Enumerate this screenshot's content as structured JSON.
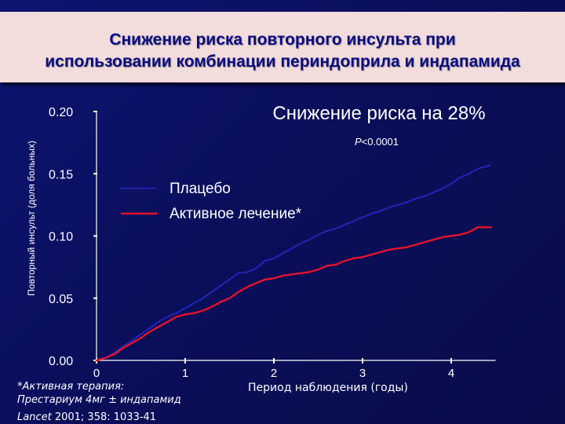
{
  "title_lines": [
    "Снижение риска повторного инсульта при",
    "использовании комбинации периндоприла и индапамида"
  ],
  "chart_data": {
    "type": "line",
    "ylabel": "Повторный инсульт (доля больных)",
    "xlabel": "Период наблюдения (годы)",
    "xlim": [
      0,
      4.5
    ],
    "ylim": [
      0,
      0.2
    ],
    "x_ticks": [
      "0",
      "1",
      "2",
      "3",
      "4"
    ],
    "y_ticks": [
      "0.00",
      "0.05",
      "0.10",
      "0.15",
      "0.20"
    ],
    "grid": false,
    "legend_position": "upper-left",
    "annotation_main": "Снижение риска на 28%",
    "annotation_p_italic": "P",
    "annotation_p_rest": "<0.0001",
    "footnote_lines": [
      "*Активная терапия:",
      "Престариум 4мг ± индапамид"
    ],
    "citation_journal": "Lancet",
    "citation_rest": " 2001; 358: 1033-41",
    "series": [
      {
        "name": "Плацебо",
        "color": "#2a2ad0",
        "style": "dotted",
        "points": [
          [
            0,
            0.0
          ],
          [
            0.1,
            0.002
          ],
          [
            0.2,
            0.006
          ],
          [
            0.3,
            0.011
          ],
          [
            0.4,
            0.016
          ],
          [
            0.5,
            0.021
          ],
          [
            0.6,
            0.026
          ],
          [
            0.7,
            0.031
          ],
          [
            0.8,
            0.035
          ],
          [
            0.9,
            0.038
          ],
          [
            1.0,
            0.042
          ],
          [
            1.1,
            0.046
          ],
          [
            1.2,
            0.05
          ],
          [
            1.3,
            0.055
          ],
          [
            1.4,
            0.06
          ],
          [
            1.5,
            0.065
          ],
          [
            1.6,
            0.07
          ],
          [
            1.7,
            0.071
          ],
          [
            1.8,
            0.074
          ],
          [
            1.9,
            0.08
          ],
          [
            2.0,
            0.082
          ],
          [
            2.1,
            0.086
          ],
          [
            2.2,
            0.09
          ],
          [
            2.3,
            0.094
          ],
          [
            2.4,
            0.097
          ],
          [
            2.5,
            0.101
          ],
          [
            2.6,
            0.104
          ],
          [
            2.7,
            0.106
          ],
          [
            2.8,
            0.109
          ],
          [
            2.9,
            0.112
          ],
          [
            3.0,
            0.115
          ],
          [
            3.1,
            0.118
          ],
          [
            3.2,
            0.12
          ],
          [
            3.3,
            0.123
          ],
          [
            3.4,
            0.125
          ],
          [
            3.5,
            0.127
          ],
          [
            3.6,
            0.13
          ],
          [
            3.7,
            0.132
          ],
          [
            3.8,
            0.135
          ],
          [
            3.9,
            0.138
          ],
          [
            4.0,
            0.142
          ],
          [
            4.1,
            0.147
          ],
          [
            4.2,
            0.15
          ],
          [
            4.3,
            0.154
          ],
          [
            4.4,
            0.156
          ],
          [
            4.45,
            0.157
          ]
        ]
      },
      {
        "name": "Активное лечение*",
        "color": "#e3132b",
        "style": "solid",
        "points": [
          [
            0,
            0.0
          ],
          [
            0.1,
            0.002
          ],
          [
            0.2,
            0.005
          ],
          [
            0.3,
            0.01
          ],
          [
            0.4,
            0.014
          ],
          [
            0.5,
            0.018
          ],
          [
            0.6,
            0.023
          ],
          [
            0.7,
            0.027
          ],
          [
            0.8,
            0.031
          ],
          [
            0.9,
            0.035
          ],
          [
            1.0,
            0.037
          ],
          [
            1.1,
            0.038
          ],
          [
            1.2,
            0.04
          ],
          [
            1.3,
            0.043
          ],
          [
            1.4,
            0.047
          ],
          [
            1.5,
            0.05
          ],
          [
            1.6,
            0.055
          ],
          [
            1.7,
            0.059
          ],
          [
            1.8,
            0.062
          ],
          [
            1.9,
            0.065
          ],
          [
            2.0,
            0.066
          ],
          [
            2.1,
            0.068
          ],
          [
            2.2,
            0.069
          ],
          [
            2.3,
            0.07
          ],
          [
            2.4,
            0.071
          ],
          [
            2.5,
            0.073
          ],
          [
            2.6,
            0.076
          ],
          [
            2.7,
            0.077
          ],
          [
            2.8,
            0.08
          ],
          [
            2.9,
            0.082
          ],
          [
            3.0,
            0.083
          ],
          [
            3.1,
            0.085
          ],
          [
            3.2,
            0.087
          ],
          [
            3.3,
            0.089
          ],
          [
            3.4,
            0.09
          ],
          [
            3.5,
            0.091
          ],
          [
            3.6,
            0.093
          ],
          [
            3.7,
            0.095
          ],
          [
            3.8,
            0.097
          ],
          [
            3.9,
            0.099
          ],
          [
            4.0,
            0.1
          ],
          [
            4.1,
            0.101
          ],
          [
            4.2,
            0.103
          ],
          [
            4.3,
            0.107
          ],
          [
            4.35,
            0.107
          ],
          [
            4.45,
            0.107
          ]
        ]
      }
    ]
  }
}
